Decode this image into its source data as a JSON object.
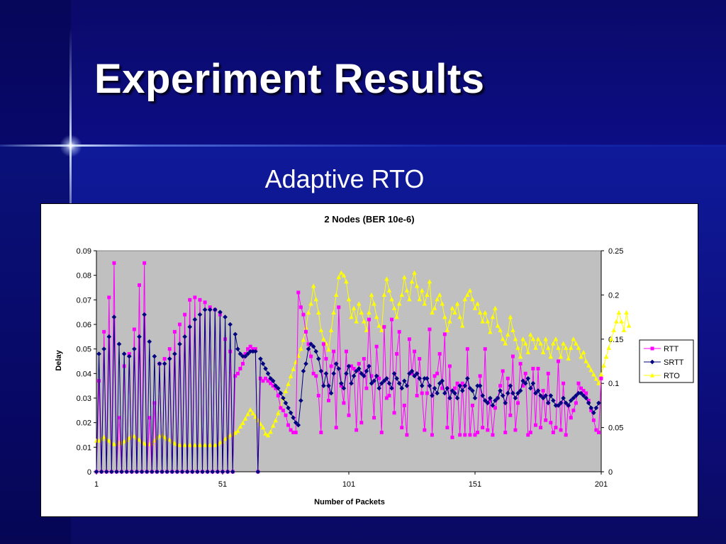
{
  "slide": {
    "title": "Experiment Results",
    "subtitle": "Adaptive RTO"
  },
  "colors": {
    "background": "#0b0b7a",
    "plot_area": "#c0c0c0",
    "rtt": "#ff00ff",
    "srtt": "#000080",
    "rto": "#ffff00"
  },
  "chart_data": {
    "type": "line",
    "title": "2 Nodes (BER 10e-6)",
    "xlabel": "Number of Packets",
    "ylabel": "Delay",
    "x_ticks": [
      "1",
      "51",
      "101",
      "151",
      "201"
    ],
    "xlim": [
      1,
      201
    ],
    "y_ticks": [
      "0",
      "0.01",
      "0.02",
      "0.03",
      "0.04",
      "0.05",
      "0.06",
      "0.07",
      "0.08",
      "0.09"
    ],
    "ylim": [
      0,
      0.09
    ],
    "y2_ticks": [
      "0",
      "0.05",
      "0.1",
      "0.15",
      "0.2",
      "0.25"
    ],
    "y2lim": [
      0,
      0.25
    ],
    "grid": false,
    "legend_position": "right",
    "series": [
      {
        "name": "RTT",
        "axis": "left",
        "marker": "square",
        "values": [
          0,
          0.037,
          0,
          0.057,
          0,
          0.071,
          0,
          0.085,
          0,
          0.022,
          0,
          0.043,
          0,
          0.048,
          0,
          0.058,
          0,
          0.076,
          0,
          0.085,
          0,
          0.022,
          0,
          0.028,
          0,
          0.044,
          0,
          0.046,
          0,
          0.05,
          0,
          0.057,
          0,
          0.06,
          0,
          0.064,
          0,
          0.07,
          0,
          0.071,
          0,
          0.07,
          0,
          0.069,
          0,
          0.067,
          0,
          0.066,
          0,
          0.064,
          0,
          0.054,
          0,
          0.049,
          0,
          0.039,
          0.04,
          0.042,
          0.044,
          0.048,
          0.05,
          0.051,
          0.05,
          0.05,
          0,
          0.038,
          0.037,
          0.038,
          0.037,
          0.036,
          0.035,
          0.034,
          0.031,
          0.026,
          0.025,
          0.023,
          0.019,
          0.017,
          0.016,
          0.016,
          0.073,
          0.067,
          0.064,
          0.057,
          0.052,
          0.047,
          0.04,
          0.039,
          0.031,
          0.016,
          0.052,
          0.046,
          0.029,
          0.043,
          0.049,
          0.018,
          0.067,
          0.035,
          0.028,
          0.049,
          0.023,
          0.043,
          0.042,
          0.017,
          0.044,
          0.02,
          0.046,
          0.034,
          0.062,
          0.039,
          0.022,
          0.051,
          0.038,
          0.016,
          0.059,
          0.03,
          0.031,
          0.062,
          0.024,
          0.048,
          0.057,
          0.018,
          0.027,
          0.015,
          0.054,
          0.04,
          0.049,
          0.031,
          0.046,
          0.032,
          0.017,
          0.032,
          0.058,
          0.015,
          0.039,
          0.04,
          0.048,
          0.034,
          0.056,
          0.018,
          0.043,
          0.014,
          0.034,
          0.036,
          0.015,
          0.036,
          0.015,
          0.05,
          0.015,
          0.027,
          0.015,
          0.016,
          0.039,
          0.018,
          0.05,
          0.017,
          0.029,
          0.015,
          0.026,
          0.03,
          0.035,
          0.041,
          0.016,
          0.038,
          0.023,
          0.047,
          0.017,
          0.028,
          0.044,
          0.035,
          0.04,
          0.015,
          0.016,
          0.042,
          0.019,
          0.042,
          0.018,
          0.033,
          0.021,
          0.04,
          0.02,
          0.016,
          0.018,
          0.045,
          0.017,
          0.036,
          0.015,
          0.027,
          0.022,
          0.025,
          0.028,
          0.036,
          0.034,
          0.033,
          0.032,
          0.029,
          0.025,
          0.021,
          0.017,
          0.016,
          0.038
        ]
      },
      {
        "name": "SRTT",
        "axis": "left",
        "marker": "diamond",
        "values": [
          0,
          0.048,
          0,
          0.05,
          0,
          0.055,
          0,
          0.063,
          0,
          0.052,
          0,
          0.048,
          0,
          0.047,
          0,
          0.05,
          0,
          0.055,
          0,
          0.064,
          0,
          0.053,
          0,
          0.047,
          0,
          0.044,
          0,
          0.044,
          0,
          0.046,
          0,
          0.048,
          0,
          0.052,
          0,
          0.055,
          0,
          0.059,
          0,
          0.062,
          0,
          0.064,
          0,
          0.066,
          0,
          0.066,
          0,
          0.066,
          0,
          0.065,
          0,
          0.063,
          0,
          0.06,
          0,
          0.056,
          0.05,
          0.048,
          0.047,
          0.047,
          0.048,
          0.049,
          0.049,
          0.049,
          0,
          0.046,
          0.044,
          0.042,
          0.04,
          0.038,
          0.037,
          0.035,
          0.034,
          0.032,
          0.03,
          0.028,
          0.026,
          0.024,
          0.022,
          0.02,
          0.019,
          0.029,
          0.041,
          0.044,
          0.05,
          0.052,
          0.051,
          0.049,
          0.046,
          0.041,
          0.035,
          0.04,
          0.035,
          0.032,
          0.04,
          0.044,
          0.042,
          0.036,
          0.034,
          0.04,
          0.043,
          0.036,
          0.039,
          0.041,
          0.042,
          0.04,
          0.039,
          0.041,
          0.043,
          0.036,
          0.037,
          0.039,
          0.034,
          0.036,
          0.037,
          0.038,
          0.036,
          0.034,
          0.04,
          0.038,
          0.036,
          0.034,
          0.037,
          0.035,
          0.04,
          0.041,
          0.039,
          0.04,
          0.038,
          0.035,
          0.038,
          0.038,
          0.035,
          0.031,
          0.034,
          0.032,
          0.036,
          0.037,
          0.032,
          0.034,
          0.03,
          0.033,
          0.032,
          0.03,
          0.035,
          0.033,
          0.035,
          0.038,
          0.034,
          0.033,
          0.03,
          0.035,
          0.035,
          0.031,
          0.029,
          0.028,
          0.03,
          0.027,
          0.029,
          0.03,
          0.033,
          0.031,
          0.028,
          0.032,
          0.035,
          0.032,
          0.03,
          0.032,
          0.033,
          0.037,
          0.036,
          0.038,
          0.034,
          0.036,
          0.032,
          0.033,
          0.031,
          0.03,
          0.031,
          0.028,
          0.031,
          0.029,
          0.027,
          0.027,
          0.028,
          0.03,
          0.028,
          0.027,
          0.029,
          0.03,
          0.031,
          0.032,
          0.032,
          0.031,
          0.03,
          0.028,
          0.026,
          0.024,
          0.026,
          0.028
        ]
      },
      {
        "name": "RTO",
        "axis": "right",
        "marker": "triangle",
        "values": [
          0.035,
          0.035,
          0.037,
          0.039,
          0.037,
          0.035,
          0.033,
          0.031,
          0.031,
          0.033,
          0.032,
          0.034,
          0.036,
          0.038,
          0.04,
          0.04,
          0.038,
          0.036,
          0.034,
          0.032,
          0.031,
          0.031,
          0.032,
          0.035,
          0.038,
          0.04,
          0.041,
          0.039,
          0.037,
          0.036,
          0.034,
          0.032,
          0.031,
          0.03,
          0.03,
          0.03,
          0.03,
          0.03,
          0.03,
          0.03,
          0.03,
          0.03,
          0.03,
          0.03,
          0.03,
          0.03,
          0.03,
          0.03,
          0.031,
          0.033,
          0.034,
          0.037,
          0.039,
          0.041,
          0.042,
          0.044,
          0.046,
          0.051,
          0.055,
          0.06,
          0.065,
          0.07,
          0.066,
          0.062,
          0.058,
          0.054,
          0.05,
          0.043,
          0.041,
          0.045,
          0.052,
          0.058,
          0.066,
          0.074,
          0.083,
          0.091,
          0.099,
          0.108,
          0.116,
          0.124,
          0.131,
          0.139,
          0.149,
          0.163,
          0.18,
          0.19,
          0.21,
          0.195,
          0.18,
          0.16,
          0.15,
          0.145,
          0.138,
          0.16,
          0.18,
          0.2,
          0.22,
          0.225,
          0.222,
          0.215,
          0.195,
          0.175,
          0.185,
          0.17,
          0.19,
          0.18,
          0.17,
          0.16,
          0.18,
          0.2,
          0.19,
          0.175,
          0.165,
          0.16,
          0.2,
          0.218,
          0.205,
          0.195,
          0.185,
          0.175,
          0.19,
          0.2,
          0.22,
          0.205,
          0.195,
          0.215,
          0.225,
          0.21,
          0.195,
          0.205,
          0.19,
          0.2,
          0.215,
          0.18,
          0.185,
          0.195,
          0.2,
          0.19,
          0.175,
          0.16,
          0.17,
          0.185,
          0.18,
          0.19,
          0.175,
          0.165,
          0.195,
          0.2,
          0.205,
          0.195,
          0.185,
          0.19,
          0.18,
          0.17,
          0.18,
          0.17,
          0.158,
          0.175,
          0.185,
          0.165,
          0.16,
          0.15,
          0.145,
          0.155,
          0.175,
          0.16,
          0.15,
          0.14,
          0.13,
          0.15,
          0.145,
          0.135,
          0.155,
          0.15,
          0.14,
          0.15,
          0.145,
          0.135,
          0.15,
          0.14,
          0.13,
          0.145,
          0.15,
          0.14,
          0.13,
          0.145,
          0.14,
          0.128,
          0.14,
          0.15,
          0.145,
          0.14,
          0.13,
          0.135,
          0.125,
          0.12,
          0.115,
          0.11,
          0.105,
          0.1,
          0.11,
          0.12,
          0.13,
          0.14,
          0.15,
          0.16,
          0.17,
          0.18,
          0.17,
          0.16,
          0.18,
          0.165
        ]
      }
    ]
  }
}
